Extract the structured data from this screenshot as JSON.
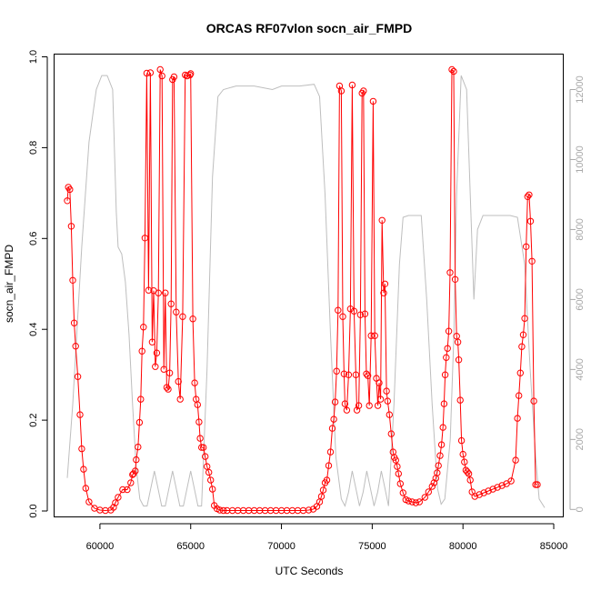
{
  "chart_data": {
    "type": "line",
    "title": "ORCAS RF07vlon socn_air_FMPD",
    "xlabel": "UTC Seconds",
    "ylabel": "socn_air_FMPD",
    "xlim": [
      57500,
      85500
    ],
    "ylim": [
      -0.012,
      1.005
    ],
    "y2lim": [
      -200,
      13000
    ],
    "x_ticks": [
      60000,
      65000,
      70000,
      75000,
      80000,
      85000
    ],
    "x_tick_labels": [
      "60000",
      "65000",
      "70000",
      "75000",
      "80000",
      "85000"
    ],
    "y_ticks": [
      0.0,
      0.2,
      0.4,
      0.6,
      0.8,
      1.0
    ],
    "y_tick_labels": [
      "0.0",
      "0.2",
      "0.4",
      "0.6",
      "0.8",
      "1.0"
    ],
    "y2_ticks": [
      0,
      2000,
      4000,
      6000,
      8000,
      10000,
      12000
    ],
    "y2_tick_labels": [
      "0",
      "2000",
      "4000",
      "6000",
      "8000",
      "10000",
      "12000"
    ],
    "grid": false,
    "colors": {
      "main": "#ff0000",
      "secondary": "#bebebe"
    },
    "series": [
      {
        "axis": "left",
        "marker": "open-circle",
        "color": "#ff0000",
        "points": [
          [
            58200,
            0.683
          ],
          [
            58260,
            0.713
          ],
          [
            58340,
            0.708
          ],
          [
            58420,
            0.627
          ],
          [
            58500,
            0.508
          ],
          [
            58580,
            0.414
          ],
          [
            58660,
            0.363
          ],
          [
            58780,
            0.296
          ],
          [
            58900,
            0.212
          ],
          [
            59000,
            0.137
          ],
          [
            59100,
            0.092
          ],
          [
            59220,
            0.05
          ],
          [
            59400,
            0.02
          ],
          [
            59700,
            0.006
          ],
          [
            60000,
            0.002
          ],
          [
            60300,
            0.001
          ],
          [
            60600,
            0.002
          ],
          [
            60750,
            0.008
          ],
          [
            60850,
            0.018
          ],
          [
            61000,
            0.03
          ],
          [
            61250,
            0.047
          ],
          [
            61500,
            0.047
          ],
          [
            61700,
            0.062
          ],
          [
            61800,
            0.08
          ],
          [
            61850,
            0.082
          ],
          [
            61950,
            0.088
          ],
          [
            62000,
            0.113
          ],
          [
            62100,
            0.141
          ],
          [
            62180,
            0.195
          ],
          [
            62250,
            0.246
          ],
          [
            62320,
            0.352
          ],
          [
            62400,
            0.405
          ],
          [
            62480,
            0.601
          ],
          [
            62580,
            0.964
          ],
          [
            62680,
            0.486
          ],
          [
            62780,
            0.965
          ],
          [
            62880,
            0.372
          ],
          [
            62960,
            0.485
          ],
          [
            63050,
            0.318
          ],
          [
            63130,
            0.348
          ],
          [
            63220,
            0.48
          ],
          [
            63320,
            0.972
          ],
          [
            63420,
            0.958
          ],
          [
            63520,
            0.312
          ],
          [
            63600,
            0.48
          ],
          [
            63680,
            0.272
          ],
          [
            63760,
            0.268
          ],
          [
            63840,
            0.304
          ],
          [
            63920,
            0.456
          ],
          [
            64000,
            0.95
          ],
          [
            64080,
            0.956
          ],
          [
            64200,
            0.438
          ],
          [
            64320,
            0.285
          ],
          [
            64420,
            0.246
          ],
          [
            64560,
            0.428
          ],
          [
            64700,
            0.96
          ],
          [
            64800,
            0.958
          ],
          [
            64960,
            0.96
          ],
          [
            65000,
            0.963
          ],
          [
            65120,
            0.423
          ],
          [
            65220,
            0.282
          ],
          [
            65300,
            0.246
          ],
          [
            65380,
            0.234
          ],
          [
            65460,
            0.196
          ],
          [
            65520,
            0.16
          ],
          [
            65600,
            0.14
          ],
          [
            65700,
            0.14
          ],
          [
            65800,
            0.12
          ],
          [
            65900,
            0.098
          ],
          [
            66000,
            0.085
          ],
          [
            66100,
            0.068
          ],
          [
            66200,
            0.048
          ],
          [
            66300,
            0.012
          ],
          [
            66450,
            0.005
          ],
          [
            66600,
            0.002
          ],
          [
            66800,
            0.001
          ],
          [
            67000,
            0.001
          ],
          [
            67300,
            0.001
          ],
          [
            67600,
            0.001
          ],
          [
            67900,
            0.001
          ],
          [
            68200,
            0.001
          ],
          [
            68500,
            0.001
          ],
          [
            68800,
            0.001
          ],
          [
            69100,
            0.001
          ],
          [
            69400,
            0.001
          ],
          [
            69700,
            0.001
          ],
          [
            70000,
            0.001
          ],
          [
            70300,
            0.001
          ],
          [
            70600,
            0.001
          ],
          [
            70900,
            0.001
          ],
          [
            71200,
            0.001
          ],
          [
            71500,
            0.002
          ],
          [
            71750,
            0.004
          ],
          [
            71950,
            0.01
          ],
          [
            72100,
            0.02
          ],
          [
            72200,
            0.032
          ],
          [
            72300,
            0.046
          ],
          [
            72400,
            0.062
          ],
          [
            72500,
            0.068
          ],
          [
            72600,
            0.1
          ],
          [
            72700,
            0.13
          ],
          [
            72800,
            0.182
          ],
          [
            72880,
            0.202
          ],
          [
            72960,
            0.24
          ],
          [
            73040,
            0.308
          ],
          [
            73120,
            0.442
          ],
          [
            73200,
            0.936
          ],
          [
            73300,
            0.925
          ],
          [
            73380,
            0.428
          ],
          [
            73450,
            0.302
          ],
          [
            73500,
            0.236
          ],
          [
            73600,
            0.222
          ],
          [
            73700,
            0.3
          ],
          [
            73800,
            0.445
          ],
          [
            73900,
            0.938
          ],
          [
            74000,
            0.44
          ],
          [
            74100,
            0.3
          ],
          [
            74160,
            0.222
          ],
          [
            74260,
            0.232
          ],
          [
            74350,
            0.432
          ],
          [
            74440,
            0.92
          ],
          [
            74520,
            0.925
          ],
          [
            74600,
            0.434
          ],
          [
            74680,
            0.302
          ],
          [
            74760,
            0.298
          ],
          [
            74840,
            0.232
          ],
          [
            74940,
            0.386
          ],
          [
            75050,
            0.902
          ],
          [
            75140,
            0.386
          ],
          [
            75230,
            0.292
          ],
          [
            75310,
            0.232
          ],
          [
            75380,
            0.282
          ],
          [
            75460,
            0.246
          ],
          [
            75540,
            0.64
          ],
          [
            75630,
            0.48
          ],
          [
            75700,
            0.5
          ],
          [
            75790,
            0.264
          ],
          [
            75850,
            0.242
          ],
          [
            75950,
            0.212
          ],
          [
            76050,
            0.17
          ],
          [
            76150,
            0.13
          ],
          [
            76220,
            0.118
          ],
          [
            76300,
            0.112
          ],
          [
            76380,
            0.098
          ],
          [
            76450,
            0.082
          ],
          [
            76550,
            0.06
          ],
          [
            76700,
            0.04
          ],
          [
            76850,
            0.025
          ],
          [
            77000,
            0.022
          ],
          [
            77200,
            0.02
          ],
          [
            77400,
            0.018
          ],
          [
            77600,
            0.02
          ],
          [
            77900,
            0.03
          ],
          [
            78100,
            0.042
          ],
          [
            78300,
            0.054
          ],
          [
            78400,
            0.062
          ],
          [
            78500,
            0.072
          ],
          [
            78580,
            0.084
          ],
          [
            78650,
            0.1
          ],
          [
            78740,
            0.122
          ],
          [
            78820,
            0.146
          ],
          [
            78900,
            0.184
          ],
          [
            78960,
            0.236
          ],
          [
            79020,
            0.3
          ],
          [
            79080,
            0.338
          ],
          [
            79150,
            0.358
          ],
          [
            79220,
            0.396
          ],
          [
            79290,
            0.525
          ],
          [
            79390,
            0.972
          ],
          [
            79490,
            0.968
          ],
          [
            79570,
            0.51
          ],
          [
            79650,
            0.385
          ],
          [
            79720,
            0.372
          ],
          [
            79770,
            0.333
          ],
          [
            79850,
            0.244
          ],
          [
            79920,
            0.155
          ],
          [
            80000,
            0.125
          ],
          [
            80080,
            0.108
          ],
          [
            80160,
            0.09
          ],
          [
            80240,
            0.086
          ],
          [
            80320,
            0.082
          ],
          [
            80400,
            0.068
          ],
          [
            80500,
            0.042
          ],
          [
            80650,
            0.032
          ],
          [
            80900,
            0.036
          ],
          [
            81150,
            0.04
          ],
          [
            81400,
            0.044
          ],
          [
            81650,
            0.048
          ],
          [
            81900,
            0.052
          ],
          [
            82150,
            0.056
          ],
          [
            82400,
            0.06
          ],
          [
            82650,
            0.066
          ],
          [
            82900,
            0.112
          ],
          [
            83000,
            0.204
          ],
          [
            83080,
            0.254
          ],
          [
            83160,
            0.304
          ],
          [
            83240,
            0.362
          ],
          [
            83320,
            0.388
          ],
          [
            83400,
            0.424
          ],
          [
            83480,
            0.582
          ],
          [
            83560,
            0.692
          ],
          [
            83640,
            0.696
          ],
          [
            83720,
            0.638
          ],
          [
            83800,
            0.55
          ],
          [
            83900,
            0.242
          ],
          [
            84000,
            0.058
          ],
          [
            84100,
            0.058
          ]
        ]
      },
      {
        "axis": "right",
        "marker": "none",
        "color": "#bebebe",
        "points": [
          [
            58200,
            900
          ],
          [
            58500,
            3000
          ],
          [
            59000,
            7500
          ],
          [
            59400,
            10500
          ],
          [
            59800,
            12000
          ],
          [
            60100,
            12400
          ],
          [
            60400,
            12400
          ],
          [
            60700,
            12000
          ],
          [
            60900,
            8500
          ],
          [
            61000,
            7500
          ],
          [
            61200,
            7300
          ],
          [
            61400,
            6500
          ],
          [
            61600,
            5000
          ],
          [
            61800,
            3000
          ],
          [
            62000,
            1200
          ],
          [
            62200,
            300
          ],
          [
            62400,
            100
          ],
          [
            62600,
            100
          ],
          [
            62800,
            600
          ],
          [
            63000,
            1100
          ],
          [
            63200,
            600
          ],
          [
            63400,
            100
          ],
          [
            63600,
            100
          ],
          [
            63800,
            600
          ],
          [
            64000,
            1100
          ],
          [
            64200,
            600
          ],
          [
            64400,
            100
          ],
          [
            64600,
            100
          ],
          [
            64800,
            600
          ],
          [
            65000,
            1100
          ],
          [
            65200,
            600
          ],
          [
            65400,
            100
          ],
          [
            65600,
            100
          ],
          [
            65900,
            4000
          ],
          [
            66200,
            9500
          ],
          [
            66500,
            11800
          ],
          [
            66800,
            12000
          ],
          [
            67500,
            12100
          ],
          [
            68500,
            12100
          ],
          [
            69500,
            12000
          ],
          [
            70000,
            12100
          ],
          [
            71000,
            12100
          ],
          [
            71800,
            12150
          ],
          [
            72100,
            11800
          ],
          [
            72400,
            9000
          ],
          [
            72700,
            5000
          ],
          [
            73000,
            1500
          ],
          [
            73300,
            300
          ],
          [
            73500,
            100
          ],
          [
            73700,
            500
          ],
          [
            73900,
            1100
          ],
          [
            74100,
            600
          ],
          [
            74300,
            100
          ],
          [
            74500,
            500
          ],
          [
            74700,
            1100
          ],
          [
            74900,
            600
          ],
          [
            75100,
            100
          ],
          [
            75300,
            500
          ],
          [
            75500,
            1100
          ],
          [
            75700,
            600
          ],
          [
            75900,
            100
          ],
          [
            76200,
            3000
          ],
          [
            76500,
            7000
          ],
          [
            76700,
            8350
          ],
          [
            77000,
            8400
          ],
          [
            77300,
            8400
          ],
          [
            77700,
            8400
          ],
          [
            78000,
            6000
          ],
          [
            78300,
            3000
          ],
          [
            78600,
            600
          ],
          [
            78800,
            150
          ],
          [
            79000,
            300
          ],
          [
            79300,
            2000
          ],
          [
            79500,
            5000
          ],
          [
            79650,
            9000
          ],
          [
            79900,
            12400
          ],
          [
            80200,
            12000
          ],
          [
            80400,
            9000
          ],
          [
            80600,
            6000
          ],
          [
            80800,
            8000
          ],
          [
            81100,
            8400
          ],
          [
            81600,
            8400
          ],
          [
            82100,
            8400
          ],
          [
            82600,
            8400
          ],
          [
            83000,
            8350
          ],
          [
            83400,
            7000
          ],
          [
            83700,
            4000
          ],
          [
            84000,
            1500
          ],
          [
            84200,
            300
          ],
          [
            84500,
            50
          ]
        ]
      }
    ]
  }
}
